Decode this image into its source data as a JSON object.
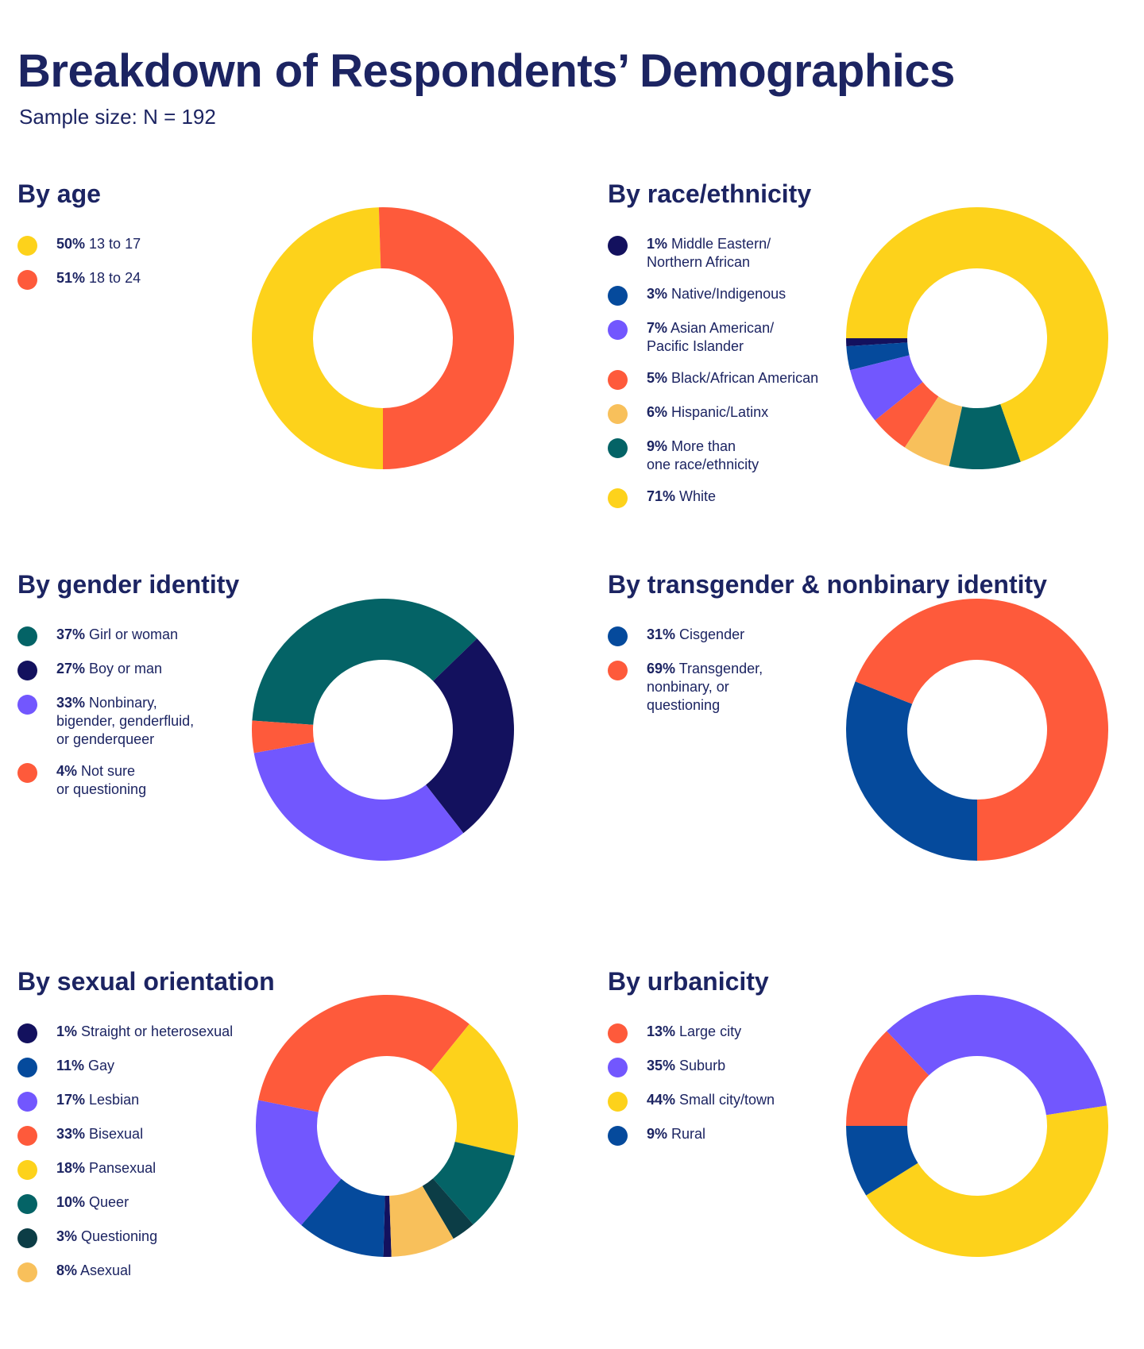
{
  "page": {
    "title": "Breakdown of Respondents’ Demographics",
    "subtitle": "Sample size: N = 192"
  },
  "colors": {
    "yellow": "#fdd21b",
    "coral": "#fe5a3b",
    "navy": "#13115e",
    "blue": "#054a9c",
    "purple": "#7257fe",
    "peach": "#f8c05b",
    "teal": "#046366",
    "darkteal": "#0c3d46",
    "text": "#1c2462"
  },
  "chart_data": [
    {
      "type": "donut",
      "title": "By age",
      "slices": [
        {
          "pct": "50%",
          "label": "13 to 17",
          "value": 50,
          "color": "#fdd21b"
        },
        {
          "pct": "51%",
          "label": "18 to 24",
          "value": 51,
          "color": "#fe5a3b"
        }
      ]
    },
    {
      "type": "donut",
      "title": "By race/ethnicity",
      "slices": [
        {
          "pct": "1%",
          "label": "Middle Eastern/\nNorthern African",
          "value": 1,
          "color": "#13115e"
        },
        {
          "pct": "3%",
          "label": "Native/Indigenous",
          "value": 3,
          "color": "#054a9c"
        },
        {
          "pct": "7%",
          "label": "Asian American/\nPacific Islander",
          "value": 7,
          "color": "#7257fe"
        },
        {
          "pct": "5%",
          "label": "Black/African American",
          "value": 5,
          "color": "#fe5a3b"
        },
        {
          "pct": "6%",
          "label": "Hispanic/Latinx",
          "value": 6,
          "color": "#f8c05b"
        },
        {
          "pct": "9%",
          "label": "More than\none race/ethnicity",
          "value": 9,
          "color": "#046366"
        },
        {
          "pct": "71%",
          "label": "White",
          "value": 71,
          "color": "#fdd21b"
        }
      ]
    },
    {
      "type": "donut",
      "title": "By gender identity",
      "slices": [
        {
          "pct": "37%",
          "label": "Girl or woman",
          "value": 37,
          "color": "#046366"
        },
        {
          "pct": "27%",
          "label": "Boy or man",
          "value": 27,
          "color": "#13115e"
        },
        {
          "pct": "33%",
          "label": "Nonbinary,\nbigender, genderfluid,\nor genderqueer",
          "value": 33,
          "color": "#7257fe"
        },
        {
          "pct": "4%",
          "label": "Not sure\nor questioning",
          "value": 4,
          "color": "#fe5a3b"
        }
      ]
    },
    {
      "type": "donut",
      "title": "By transgender & nonbinary identity",
      "slices": [
        {
          "pct": "31%",
          "label": "Cisgender",
          "value": 31,
          "color": "#054a9c"
        },
        {
          "pct": "69%",
          "label": "Transgender,\nnonbinary, or\nquestioning",
          "value": 69,
          "color": "#fe5a3b"
        }
      ]
    },
    {
      "type": "donut",
      "title": "By sexual orientation",
      "slices": [
        {
          "pct": "1%",
          "label": "Straight or heterosexual",
          "value": 1,
          "color": "#13115e"
        },
        {
          "pct": "11%",
          "label": "Gay",
          "value": 11,
          "color": "#054a9c"
        },
        {
          "pct": "17%",
          "label": "Lesbian",
          "value": 17,
          "color": "#7257fe"
        },
        {
          "pct": "33%",
          "label": "Bisexual",
          "value": 33,
          "color": "#fe5a3b"
        },
        {
          "pct": "18%",
          "label": "Pansexual",
          "value": 18,
          "color": "#fdd21b"
        },
        {
          "pct": "10%",
          "label": "Queer",
          "value": 10,
          "color": "#046366"
        },
        {
          "pct": "3%",
          "label": "Questioning",
          "value": 3,
          "color": "#0c3d46"
        },
        {
          "pct": "8%",
          "label": "Asexual",
          "value": 8,
          "color": "#f8c05b"
        }
      ]
    },
    {
      "type": "donut",
      "title": "By urbanicity",
      "slices": [
        {
          "pct": "13%",
          "label": "Large city",
          "value": 13,
          "color": "#fe5a3b"
        },
        {
          "pct": "35%",
          "label": "Suburb",
          "value": 35,
          "color": "#7257fe"
        },
        {
          "pct": "44%",
          "label": "Small city/town",
          "value": 44,
          "color": "#fdd21b"
        },
        {
          "pct": "9%",
          "label": "Rural",
          "value": 9,
          "color": "#054a9c"
        }
      ]
    }
  ]
}
